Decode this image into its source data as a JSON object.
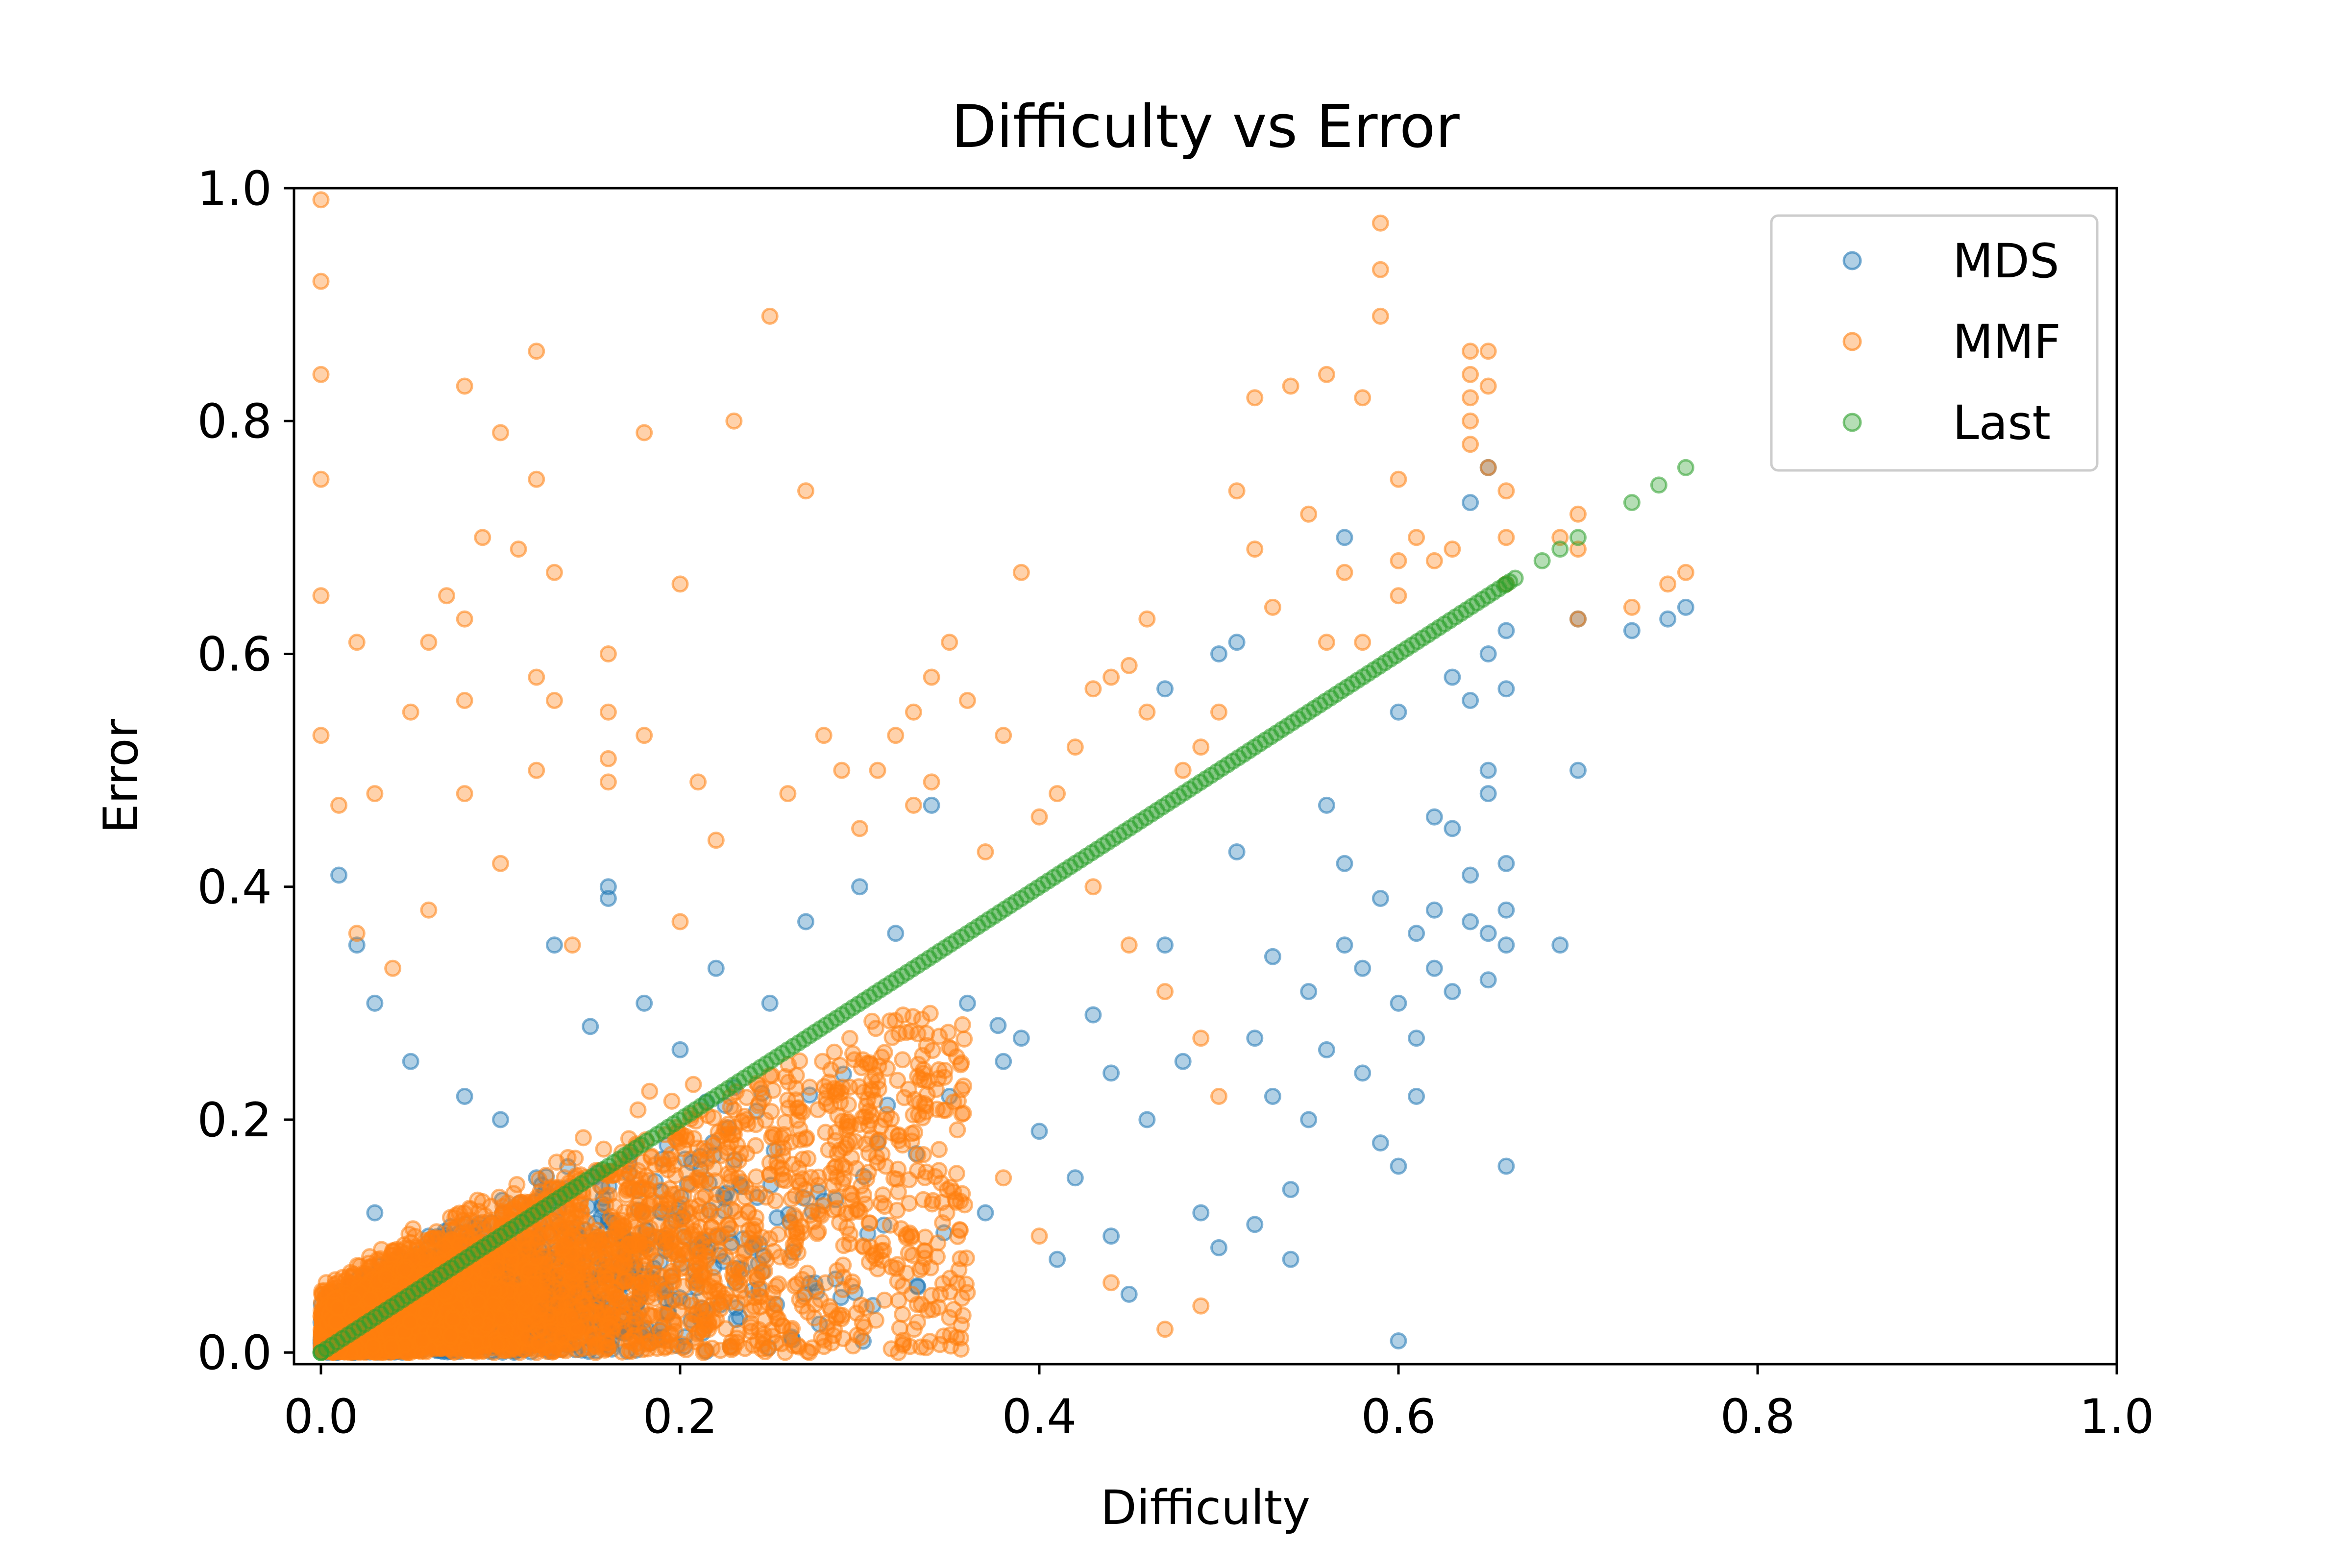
{
  "chart_data": {
    "type": "scatter",
    "title": "Difficulty vs Error",
    "xlabel": "Difficulty",
    "ylabel": "Error",
    "xlim": [
      -0.015,
      1.0
    ],
    "ylim": [
      -0.01,
      1.0
    ],
    "xticks": [
      {
        "value": 0.0,
        "label": "0.0"
      },
      {
        "value": 0.2,
        "label": "0.2"
      },
      {
        "value": 0.4,
        "label": "0.4"
      },
      {
        "value": 0.6,
        "label": "0.6"
      },
      {
        "value": 0.8,
        "label": "0.8"
      },
      {
        "value": 1.0,
        "label": "1.0"
      }
    ],
    "yticks": [
      {
        "value": 0.0,
        "label": "0.0"
      },
      {
        "value": 0.2,
        "label": "0.2"
      },
      {
        "value": 0.4,
        "label": "0.4"
      },
      {
        "value": 0.6,
        "label": "0.6"
      },
      {
        "value": 0.8,
        "label": "0.8"
      },
      {
        "value": 1.0,
        "label": "1.0"
      }
    ],
    "grid": false,
    "legend_position": "upper right",
    "series": [
      {
        "name": "MDS",
        "color": "#1f77b4",
        "points": [
          [
            0.01,
            0.41
          ],
          [
            0.02,
            0.35
          ],
          [
            0.03,
            0.3
          ],
          [
            0.05,
            0.25
          ],
          [
            0.08,
            0.22
          ],
          [
            0.1,
            0.2
          ],
          [
            0.12,
            0.15
          ],
          [
            0.13,
            0.35
          ],
          [
            0.15,
            0.28
          ],
          [
            0.16,
            0.4
          ],
          [
            0.16,
            0.39
          ],
          [
            0.18,
            0.3
          ],
          [
            0.2,
            0.26
          ],
          [
            0.22,
            0.33
          ],
          [
            0.25,
            0.3
          ],
          [
            0.27,
            0.37
          ],
          [
            0.3,
            0.4
          ],
          [
            0.32,
            0.36
          ],
          [
            0.34,
            0.47
          ],
          [
            0.36,
            0.3
          ],
          [
            0.38,
            0.25
          ],
          [
            0.4,
            0.19
          ],
          [
            0.42,
            0.15
          ],
          [
            0.44,
            0.1
          ],
          [
            0.45,
            0.05
          ],
          [
            0.46,
            0.2
          ],
          [
            0.47,
            0.35
          ],
          [
            0.47,
            0.57
          ],
          [
            0.48,
            0.25
          ],
          [
            0.49,
            0.12
          ],
          [
            0.5,
            0.09
          ],
          [
            0.5,
            0.6
          ],
          [
            0.51,
            0.61
          ],
          [
            0.51,
            0.43
          ],
          [
            0.52,
            0.27
          ],
          [
            0.52,
            0.11
          ],
          [
            0.53,
            0.22
          ],
          [
            0.53,
            0.34
          ],
          [
            0.54,
            0.08
          ],
          [
            0.54,
            0.14
          ],
          [
            0.55,
            0.31
          ],
          [
            0.55,
            0.2
          ],
          [
            0.56,
            0.47
          ],
          [
            0.56,
            0.26
          ],
          [
            0.57,
            0.42
          ],
          [
            0.57,
            0.35
          ],
          [
            0.57,
            0.7
          ],
          [
            0.58,
            0.24
          ],
          [
            0.58,
            0.33
          ],
          [
            0.59,
            0.39
          ],
          [
            0.59,
            0.18
          ],
          [
            0.6,
            0.55
          ],
          [
            0.6,
            0.3
          ],
          [
            0.6,
            0.16
          ],
          [
            0.6,
            0.01
          ],
          [
            0.61,
            0.36
          ],
          [
            0.61,
            0.27
          ],
          [
            0.61,
            0.22
          ],
          [
            0.62,
            0.46
          ],
          [
            0.62,
            0.38
          ],
          [
            0.62,
            0.33
          ],
          [
            0.63,
            0.58
          ],
          [
            0.63,
            0.45
          ],
          [
            0.63,
            0.31
          ],
          [
            0.64,
            0.56
          ],
          [
            0.64,
            0.37
          ],
          [
            0.64,
            0.41
          ],
          [
            0.64,
            0.73
          ],
          [
            0.65,
            0.6
          ],
          [
            0.65,
            0.5
          ],
          [
            0.65,
            0.36
          ],
          [
            0.65,
            0.32
          ],
          [
            0.65,
            0.48
          ],
          [
            0.65,
            0.76
          ],
          [
            0.66,
            0.62
          ],
          [
            0.66,
            0.57
          ],
          [
            0.66,
            0.42
          ],
          [
            0.66,
            0.38
          ],
          [
            0.66,
            0.16
          ],
          [
            0.66,
            0.35
          ],
          [
            0.69,
            0.35
          ],
          [
            0.7,
            0.63
          ],
          [
            0.7,
            0.5
          ],
          [
            0.73,
            0.62
          ],
          [
            0.75,
            0.63
          ],
          [
            0.76,
            0.64
          ],
          [
            0.03,
            0.12
          ],
          [
            0.06,
            0.1
          ],
          [
            0.09,
            0.05
          ],
          [
            0.14,
            0.08
          ],
          [
            0.19,
            0.12
          ],
          [
            0.24,
            0.09
          ],
          [
            0.28,
            0.13
          ],
          [
            0.31,
            0.18
          ],
          [
            0.35,
            0.22
          ],
          [
            0.37,
            0.12
          ],
          [
            0.39,
            0.27
          ],
          [
            0.41,
            0.08
          ],
          [
            0.43,
            0.29
          ],
          [
            0.44,
            0.24
          ]
        ]
      },
      {
        "name": "MMF",
        "color": "#ff7f0e",
        "points": [
          [
            0.0,
            0.99
          ],
          [
            0.0,
            0.92
          ],
          [
            0.0,
            0.84
          ],
          [
            0.0,
            0.75
          ],
          [
            0.0,
            0.65
          ],
          [
            0.0,
            0.53
          ],
          [
            0.01,
            0.47
          ],
          [
            0.02,
            0.61
          ],
          [
            0.03,
            0.48
          ],
          [
            0.05,
            0.55
          ],
          [
            0.06,
            0.61
          ],
          [
            0.07,
            0.65
          ],
          [
            0.08,
            0.63
          ],
          [
            0.08,
            0.56
          ],
          [
            0.08,
            0.48
          ],
          [
            0.08,
            0.83
          ],
          [
            0.09,
            0.7
          ],
          [
            0.1,
            0.79
          ],
          [
            0.11,
            0.69
          ],
          [
            0.12,
            0.86
          ],
          [
            0.12,
            0.75
          ],
          [
            0.12,
            0.58
          ],
          [
            0.12,
            0.5
          ],
          [
            0.13,
            0.56
          ],
          [
            0.13,
            0.67
          ],
          [
            0.16,
            0.6
          ],
          [
            0.16,
            0.55
          ],
          [
            0.16,
            0.51
          ],
          [
            0.16,
            0.49
          ],
          [
            0.18,
            0.79
          ],
          [
            0.18,
            0.53
          ],
          [
            0.2,
            0.66
          ],
          [
            0.21,
            0.49
          ],
          [
            0.23,
            0.8
          ],
          [
            0.25,
            0.89
          ],
          [
            0.27,
            0.74
          ],
          [
            0.28,
            0.53
          ],
          [
            0.29,
            0.5
          ],
          [
            0.31,
            0.5
          ],
          [
            0.32,
            0.53
          ],
          [
            0.33,
            0.55
          ],
          [
            0.34,
            0.49
          ],
          [
            0.34,
            0.58
          ],
          [
            0.35,
            0.61
          ],
          [
            0.36,
            0.56
          ],
          [
            0.38,
            0.53
          ],
          [
            0.39,
            0.67
          ],
          [
            0.41,
            0.48
          ],
          [
            0.42,
            0.52
          ],
          [
            0.43,
            0.57
          ],
          [
            0.44,
            0.58
          ],
          [
            0.45,
            0.59
          ],
          [
            0.46,
            0.63
          ],
          [
            0.46,
            0.55
          ],
          [
            0.48,
            0.5
          ],
          [
            0.49,
            0.52
          ],
          [
            0.5,
            0.55
          ],
          [
            0.51,
            0.74
          ],
          [
            0.52,
            0.69
          ],
          [
            0.52,
            0.82
          ],
          [
            0.53,
            0.64
          ],
          [
            0.54,
            0.83
          ],
          [
            0.55,
            0.72
          ],
          [
            0.56,
            0.84
          ],
          [
            0.56,
            0.61
          ],
          [
            0.57,
            0.67
          ],
          [
            0.58,
            0.82
          ],
          [
            0.58,
            0.61
          ],
          [
            0.59,
            0.89
          ],
          [
            0.59,
            0.93
          ],
          [
            0.59,
            0.97
          ],
          [
            0.6,
            0.75
          ],
          [
            0.6,
            0.68
          ],
          [
            0.6,
            0.65
          ],
          [
            0.61,
            0.7
          ],
          [
            0.62,
            0.68
          ],
          [
            0.63,
            0.69
          ],
          [
            0.64,
            0.86
          ],
          [
            0.64,
            0.84
          ],
          [
            0.64,
            0.82
          ],
          [
            0.64,
            0.8
          ],
          [
            0.64,
            0.78
          ],
          [
            0.65,
            0.86
          ],
          [
            0.65,
            0.83
          ],
          [
            0.65,
            0.76
          ],
          [
            0.66,
            0.74
          ],
          [
            0.66,
            0.7
          ],
          [
            0.66,
            0.66
          ],
          [
            0.69,
            0.7
          ],
          [
            0.7,
            0.72
          ],
          [
            0.7,
            0.69
          ],
          [
            0.7,
            0.63
          ],
          [
            0.73,
            0.64
          ],
          [
            0.75,
            0.66
          ],
          [
            0.76,
            0.67
          ],
          [
            0.02,
            0.36
          ],
          [
            0.04,
            0.33
          ],
          [
            0.06,
            0.38
          ],
          [
            0.1,
            0.42
          ],
          [
            0.14,
            0.35
          ],
          [
            0.2,
            0.37
          ],
          [
            0.22,
            0.44
          ],
          [
            0.26,
            0.48
          ],
          [
            0.3,
            0.45
          ],
          [
            0.33,
            0.47
          ],
          [
            0.37,
            0.43
          ],
          [
            0.4,
            0.46
          ],
          [
            0.43,
            0.4
          ],
          [
            0.45,
            0.35
          ],
          [
            0.47,
            0.31
          ],
          [
            0.49,
            0.27
          ],
          [
            0.5,
            0.22
          ],
          [
            0.49,
            0.04
          ],
          [
            0.47,
            0.02
          ],
          [
            0.44,
            0.06
          ],
          [
            0.4,
            0.1
          ],
          [
            0.38,
            0.15
          ],
          [
            0.35,
            0.03
          ]
        ]
      },
      {
        "name": "Last",
        "color": "#2ca02c",
        "points": [
          [
            0.0,
            0.0
          ],
          [
            0.66,
            0.66
          ],
          [
            0.68,
            0.68
          ],
          [
            0.69,
            0.69
          ],
          [
            0.7,
            0.7
          ],
          [
            0.73,
            0.73
          ],
          [
            0.745,
            0.745
          ],
          [
            0.76,
            0.76
          ]
        ]
      }
    ],
    "dense_cluster": {
      "description_values": {
        "MDS": {
          "x": [
            0.0,
            0.45
          ],
          "y": [
            0.0,
            0.43
          ]
        },
        "MMF": {
          "x": [
            0.0,
            0.45
          ],
          "y": [
            0.0,
            0.45
          ]
        }
      }
    },
    "reference_line": {
      "series": "Last",
      "from": [
        0.0,
        0.0
      ],
      "to": [
        0.665,
        0.665
      ]
    }
  }
}
